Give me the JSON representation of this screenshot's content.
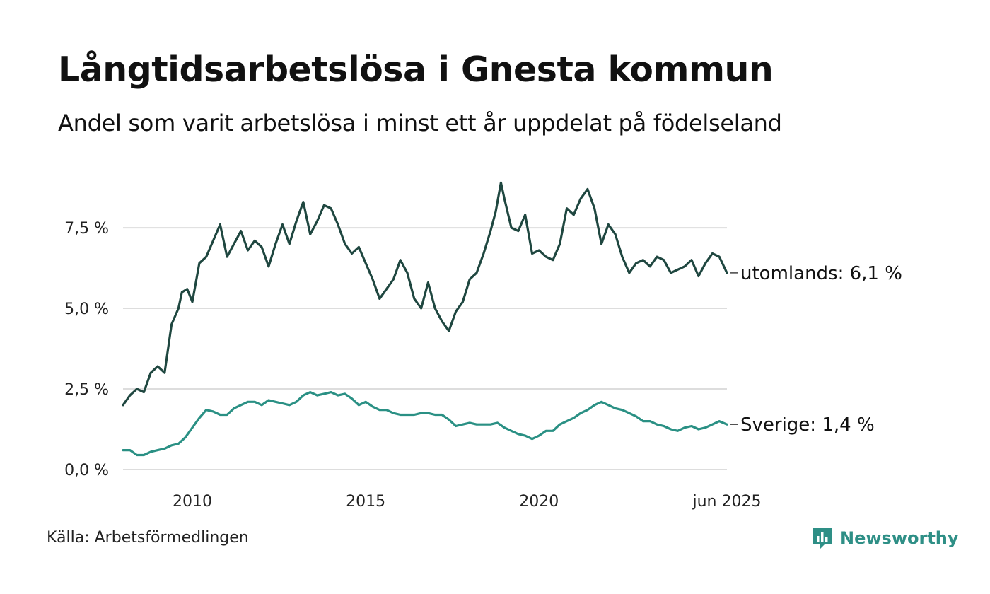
{
  "title": "Långtidsarbetslösa i Gnesta kommun",
  "subtitle": "Andel som varit arbetslösa i minst ett år uppdelat på födelseland",
  "source": "Källa: Arbetsförmedlingen",
  "brand": "Newsworthy",
  "colors": {
    "utomlands": "#1f4740",
    "sverige": "#2a9084",
    "grid": "#dddddd",
    "brand": "#2e8f86"
  },
  "chart_data": {
    "type": "line",
    "x_tick_labels": [
      "2010",
      "2015",
      "2020",
      "jun 2025"
    ],
    "x_tick_values": [
      2010,
      2015,
      2020,
      2025.42
    ],
    "y_tick_labels": [
      "0,0 %",
      "2,5 %",
      "5,0 %",
      "7,5 %"
    ],
    "y_tick_values": [
      0,
      2.5,
      5.0,
      7.5
    ],
    "ylim": [
      0,
      9.3
    ],
    "xlim": [
      2008.0,
      2025.42
    ],
    "grid": true,
    "series": [
      {
        "key": "utomlands",
        "end_label": "utomlands: 6,1 %",
        "x": [
          2008.0,
          2008.2,
          2008.4,
          2008.6,
          2008.8,
          2009.0,
          2009.2,
          2009.4,
          2009.6,
          2009.7,
          2009.85,
          2010.0,
          2010.2,
          2010.4,
          2010.6,
          2010.8,
          2011.0,
          2011.2,
          2011.4,
          2011.6,
          2011.8,
          2012.0,
          2012.2,
          2012.4,
          2012.6,
          2012.8,
          2013.0,
          2013.2,
          2013.4,
          2013.6,
          2013.8,
          2014.0,
          2014.2,
          2014.4,
          2014.6,
          2014.8,
          2015.0,
          2015.2,
          2015.4,
          2015.6,
          2015.8,
          2016.0,
          2016.2,
          2016.4,
          2016.6,
          2016.8,
          2017.0,
          2017.2,
          2017.4,
          2017.6,
          2017.8,
          2018.0,
          2018.2,
          2018.4,
          2018.6,
          2018.75,
          2018.9,
          2019.0,
          2019.2,
          2019.4,
          2019.6,
          2019.8,
          2020.0,
          2020.2,
          2020.4,
          2020.6,
          2020.8,
          2021.0,
          2021.2,
          2021.4,
          2021.6,
          2021.8,
          2022.0,
          2022.2,
          2022.4,
          2022.6,
          2022.8,
          2023.0,
          2023.2,
          2023.4,
          2023.6,
          2023.8,
          2024.0,
          2024.2,
          2024.4,
          2024.6,
          2024.8,
          2025.0,
          2025.2,
          2025.42
        ],
        "y": [
          2.0,
          2.3,
          2.5,
          2.4,
          3.0,
          3.2,
          3.0,
          4.5,
          5.0,
          5.5,
          5.6,
          5.2,
          6.4,
          6.6,
          7.1,
          7.6,
          6.6,
          7.0,
          7.4,
          6.8,
          7.1,
          6.9,
          6.3,
          7.0,
          7.6,
          7.0,
          7.7,
          8.3,
          7.3,
          7.7,
          8.2,
          8.1,
          7.6,
          7.0,
          6.7,
          6.9,
          6.4,
          5.9,
          5.3,
          5.6,
          5.9,
          6.5,
          6.1,
          5.3,
          5.0,
          5.8,
          5.0,
          4.6,
          4.3,
          4.9,
          5.2,
          5.9,
          6.1,
          6.7,
          7.4,
          8.0,
          8.9,
          8.4,
          7.5,
          7.4,
          7.9,
          6.7,
          6.8,
          6.6,
          6.5,
          7.0,
          8.1,
          7.9,
          8.4,
          8.7,
          8.1,
          7.0,
          7.6,
          7.3,
          6.6,
          6.1,
          6.4,
          6.5,
          6.3,
          6.6,
          6.5,
          6.1,
          6.2,
          6.3,
          6.5,
          6.0,
          6.4,
          6.7,
          6.6,
          6.1
        ]
      },
      {
        "key": "sverige",
        "end_label": "Sverige: 1,4 %",
        "x": [
          2008.0,
          2008.2,
          2008.4,
          2008.6,
          2008.8,
          2009.0,
          2009.2,
          2009.4,
          2009.6,
          2009.8,
          2010.0,
          2010.2,
          2010.4,
          2010.6,
          2010.8,
          2011.0,
          2011.2,
          2011.4,
          2011.6,
          2011.8,
          2012.0,
          2012.2,
          2012.4,
          2012.6,
          2012.8,
          2013.0,
          2013.2,
          2013.4,
          2013.6,
          2013.8,
          2014.0,
          2014.2,
          2014.4,
          2014.6,
          2014.8,
          2015.0,
          2015.2,
          2015.4,
          2015.6,
          2015.8,
          2016.0,
          2016.2,
          2016.4,
          2016.6,
          2016.8,
          2017.0,
          2017.2,
          2017.4,
          2017.6,
          2017.8,
          2018.0,
          2018.2,
          2018.4,
          2018.6,
          2018.8,
          2019.0,
          2019.2,
          2019.4,
          2019.6,
          2019.8,
          2020.0,
          2020.2,
          2020.4,
          2020.6,
          2020.8,
          2021.0,
          2021.2,
          2021.4,
          2021.6,
          2021.8,
          2022.0,
          2022.2,
          2022.4,
          2022.6,
          2022.8,
          2023.0,
          2023.2,
          2023.4,
          2023.6,
          2023.8,
          2024.0,
          2024.2,
          2024.4,
          2024.6,
          2024.8,
          2025.0,
          2025.2,
          2025.42
        ],
        "y": [
          0.6,
          0.6,
          0.45,
          0.45,
          0.55,
          0.6,
          0.65,
          0.75,
          0.8,
          1.0,
          1.3,
          1.6,
          1.85,
          1.8,
          1.7,
          1.7,
          1.9,
          2.0,
          2.1,
          2.1,
          2.0,
          2.15,
          2.1,
          2.05,
          2.0,
          2.1,
          2.3,
          2.4,
          2.3,
          2.35,
          2.4,
          2.3,
          2.35,
          2.2,
          2.0,
          2.1,
          1.95,
          1.85,
          1.85,
          1.75,
          1.7,
          1.7,
          1.7,
          1.75,
          1.75,
          1.7,
          1.7,
          1.55,
          1.35,
          1.4,
          1.45,
          1.4,
          1.4,
          1.4,
          1.45,
          1.3,
          1.2,
          1.1,
          1.05,
          0.95,
          1.05,
          1.2,
          1.2,
          1.4,
          1.5,
          1.6,
          1.75,
          1.85,
          2.0,
          2.1,
          2.0,
          1.9,
          1.85,
          1.75,
          1.65,
          1.5,
          1.5,
          1.4,
          1.35,
          1.25,
          1.2,
          1.3,
          1.35,
          1.25,
          1.3,
          1.4,
          1.5,
          1.4
        ]
      }
    ]
  }
}
